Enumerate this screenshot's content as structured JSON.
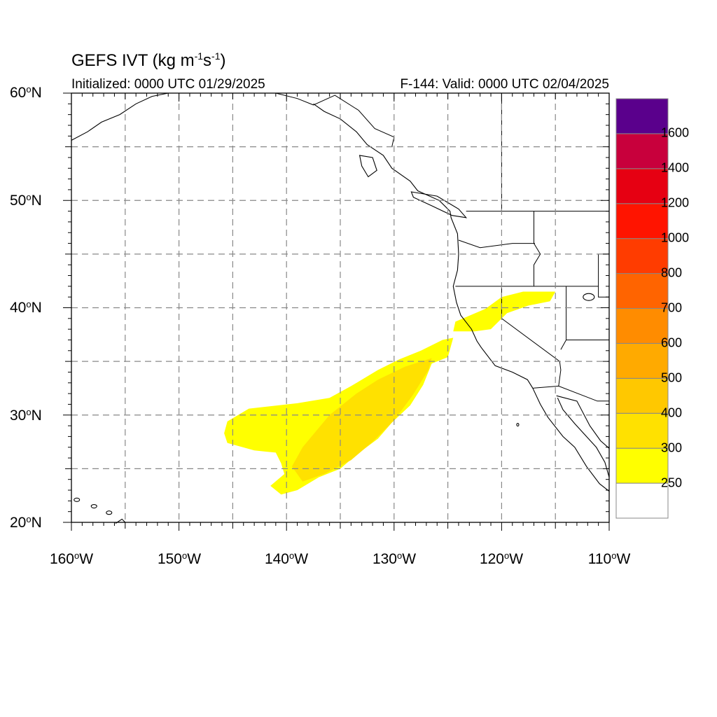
{
  "title": {
    "main": "GEFS IVT (kg m",
    "exp1": "-1",
    "mid": "s",
    "exp2": "-1",
    "close": ")"
  },
  "subtitle_left": "Initialized: 0000 UTC 01/29/2025",
  "subtitle_right": "F-144: Valid: 0000 UTC 02/04/2025",
  "lat_labels": [
    {
      "num": "60",
      "hemi": "N"
    },
    {
      "num": "50",
      "hemi": "N"
    },
    {
      "num": "40",
      "hemi": "N"
    },
    {
      "num": "30",
      "hemi": "N"
    },
    {
      "num": "20",
      "hemi": "N"
    }
  ],
  "lon_labels": [
    {
      "num": "160",
      "hemi": "W"
    },
    {
      "num": "150",
      "hemi": "W"
    },
    {
      "num": "140",
      "hemi": "W"
    },
    {
      "num": "130",
      "hemi": "W"
    },
    {
      "num": "120",
      "hemi": "W"
    },
    {
      "num": "110",
      "hemi": "W"
    }
  ],
  "map_extent": {
    "lon_min": -160,
    "lon_max": -110,
    "lat_min": 20,
    "lat_max": 60
  },
  "colorbar": {
    "levels": [
      "250",
      "300",
      "400",
      "500",
      "600",
      "700",
      "800",
      "1000",
      "1200",
      "1400",
      "1600"
    ],
    "colors": [
      "#ffffff",
      "#ffff00",
      "#ffe100",
      "#ffc800",
      "#ffaa00",
      "#ff8c00",
      "#ff6400",
      "#ff3c00",
      "#ff1400",
      "#e60012",
      "#c8003c",
      "#8c005a",
      "#5a008c"
    ]
  },
  "ivt_field": {
    "main_plume_300": [
      [
        -145.8,
        28.3
      ],
      [
        -145.5,
        29.4
      ],
      [
        -143.5,
        30.6
      ],
      [
        -139.0,
        31.1
      ],
      [
        -136.0,
        31.6
      ],
      [
        -134.0,
        32.7
      ],
      [
        -131.5,
        34.2
      ],
      [
        -129.5,
        35.2
      ],
      [
        -127.5,
        36.0
      ],
      [
        -125.5,
        37.0
      ],
      [
        -124.5,
        37.2
      ],
      [
        -125.0,
        35.4
      ],
      [
        -126.5,
        34.8
      ],
      [
        -127.3,
        32.8
      ],
      [
        -128.5,
        30.9
      ],
      [
        -130.2,
        29.3
      ],
      [
        -131.5,
        27.8
      ],
      [
        -133.5,
        26.3
      ],
      [
        -135.0,
        25.0
      ],
      [
        -137.0,
        24.2
      ],
      [
        -139.0,
        23.0
      ],
      [
        -140.5,
        22.6
      ],
      [
        -141.5,
        23.4
      ],
      [
        -140.2,
        24.5
      ],
      [
        -140.5,
        25.5
      ],
      [
        -141.0,
        26.5
      ],
      [
        -143.0,
        26.7
      ],
      [
        -145.5,
        27.4
      ]
    ],
    "main_plume_400": [
      [
        -139.5,
        25.2
      ],
      [
        -138.5,
        27.0
      ],
      [
        -137.5,
        28.2
      ],
      [
        -136.0,
        30.0
      ],
      [
        -133.5,
        32.0
      ],
      [
        -131.5,
        33.3
      ],
      [
        -129.0,
        34.5
      ],
      [
        -126.5,
        35.3
      ],
      [
        -126.8,
        34.2
      ],
      [
        -128.3,
        31.8
      ],
      [
        -130.0,
        29.5
      ],
      [
        -132.0,
        27.5
      ],
      [
        -134.0,
        25.8
      ],
      [
        -136.5,
        24.5
      ],
      [
        -138.5,
        23.8
      ]
    ],
    "coastal_300": [
      [
        -124.3,
        38.7
      ],
      [
        -121.5,
        39.9
      ],
      [
        -120.0,
        41.0
      ],
      [
        -118.0,
        41.5
      ],
      [
        -115.0,
        41.5
      ],
      [
        -115.5,
        40.6
      ],
      [
        -117.5,
        40.2
      ],
      [
        -119.5,
        39.5
      ],
      [
        -121.0,
        38.0
      ],
      [
        -122.5,
        37.8
      ],
      [
        -124.5,
        37.8
      ]
    ]
  }
}
